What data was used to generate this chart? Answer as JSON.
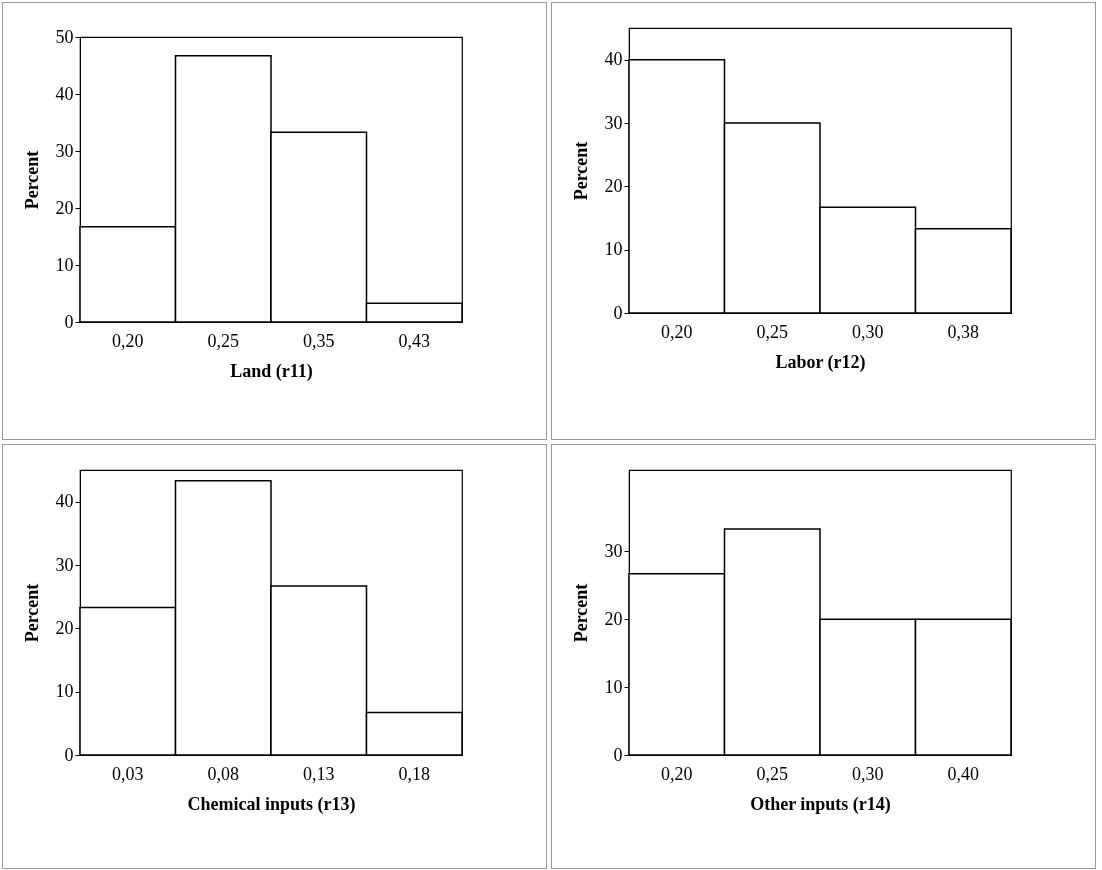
{
  "chart_data": [
    {
      "type": "bar",
      "xlabel": "Land (r11)",
      "ylabel": "Percent",
      "categories": [
        "0,20",
        "0,25",
        "0,35",
        "0,43"
      ],
      "values": [
        16.7,
        46.7,
        33.3,
        3.3
      ],
      "color": "#ffffff",
      "ylim": [
        0,
        50
      ],
      "yticks": [
        0,
        10,
        20,
        30,
        40,
        50
      ],
      "grid": false
    },
    {
      "type": "bar",
      "xlabel": "Labor (r12)",
      "ylabel": "Percent",
      "categories": [
        "0,20",
        "0,25",
        "0,30",
        "0,38"
      ],
      "values": [
        40,
        30,
        16.7,
        13.3
      ],
      "color": "#ffffff",
      "ylim": [
        0,
        45
      ],
      "yticks": [
        0,
        10,
        20,
        30,
        40
      ],
      "grid": false
    },
    {
      "type": "bar",
      "xlabel": "Chemical inputs (r13)",
      "ylabel": "Percent",
      "categories": [
        "0,03",
        "0,08",
        "0,13",
        "0,18"
      ],
      "values": [
        23.3,
        43.3,
        26.7,
        6.7
      ],
      "color": "#ffffff",
      "ylim": [
        0,
        45
      ],
      "yticks": [
        0,
        10,
        20,
        30,
        40
      ],
      "grid": false
    },
    {
      "type": "bar",
      "xlabel": "Other inputs (r14)",
      "ylabel": "Percent",
      "categories": [
        "0,20",
        "0,25",
        "0,30",
        "0,40"
      ],
      "values": [
        26.7,
        33.3,
        20,
        20
      ],
      "color": "#ffffff",
      "ylim": [
        0,
        42
      ],
      "yticks": [
        0,
        10,
        20,
        30
      ],
      "grid": false
    }
  ]
}
